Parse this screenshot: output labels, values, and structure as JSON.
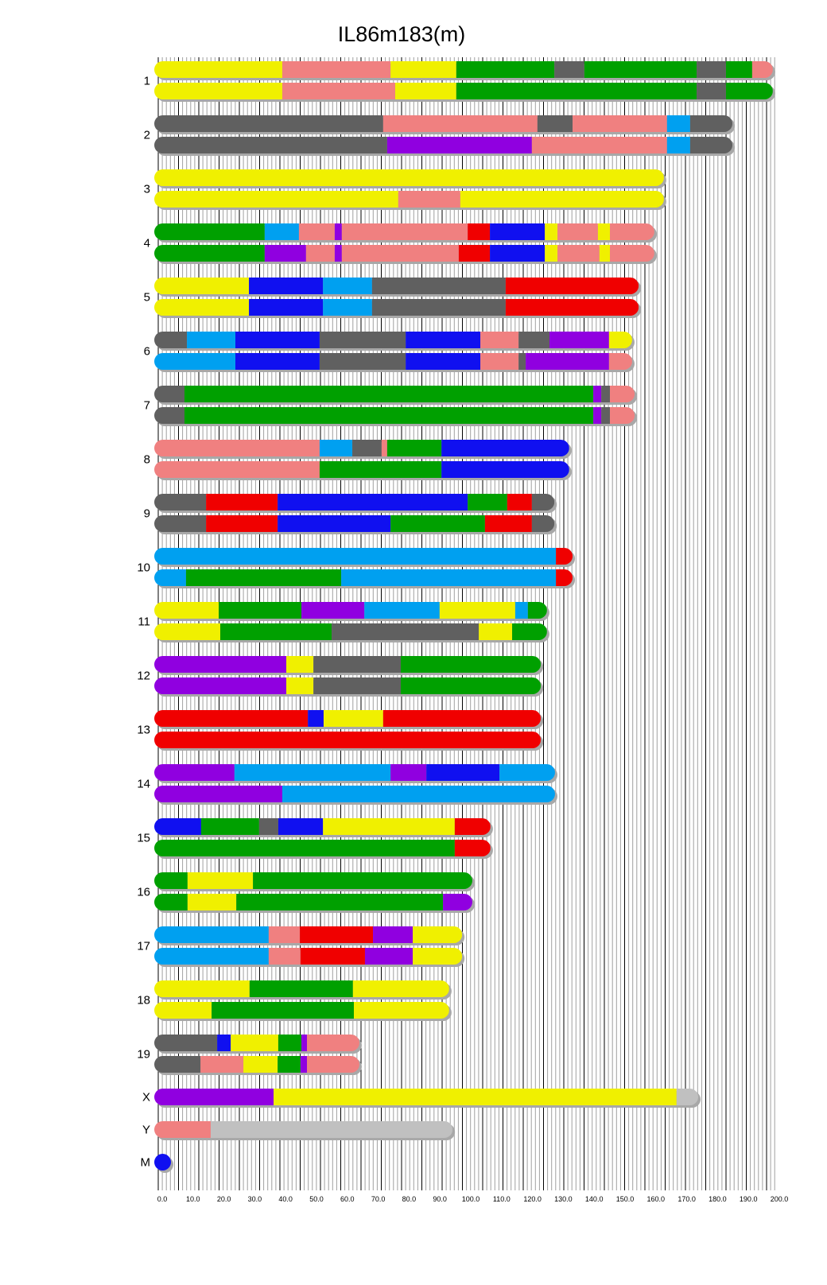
{
  "chart_data": {
    "type": "chromosome-painting",
    "title": "IL86m183(m)",
    "xlabel": "",
    "ylabel": "",
    "xlim": [
      0,
      200
    ],
    "x_ticks": [
      "0.0",
      "10.0",
      "20.0",
      "30.0",
      "40.0",
      "50.0",
      "60.0",
      "70.0",
      "80.0",
      "90.0",
      "100.0",
      "110.0",
      "120.0",
      "130.0",
      "140.0",
      "150.0",
      "160.0",
      "170.0",
      "180.0",
      "190.0",
      "200.0"
    ],
    "grid": true,
    "palette": {
      "Y": "#f0f000",
      "P": "#f08080",
      "G": "#00a000",
      "D": "#606060",
      "B": "#1010f0",
      "C": "#00a0f0",
      "R": "#f00000",
      "V": "#9000e0",
      "L": "#c0c0c0"
    },
    "chromosomes": [
      {
        "label": "1",
        "haplotypes": [
          [
            [
              "Y",
              40.2
            ],
            [
              "P",
              75.3
            ],
            [
              "Y",
              96.6
            ],
            [
              "G",
              128.4
            ],
            [
              "D",
              138.1
            ],
            [
              "G",
              174.5
            ],
            [
              "D",
              184.0
            ],
            [
              "G",
              192.5
            ],
            [
              "P",
              199.2
            ]
          ],
          [
            [
              "Y",
              40.2
            ],
            [
              "P",
              76.8
            ],
            [
              "Y",
              96.6
            ],
            [
              "G",
              174.5
            ],
            [
              "D",
              184.0
            ],
            [
              "G",
              199.2
            ]
          ]
        ]
      },
      {
        "label": "2",
        "haplotypes": [
          [
            [
              "D",
              72.9
            ],
            [
              "P",
              122.9
            ],
            [
              "D",
              134.3
            ],
            [
              "P",
              164.9
            ],
            [
              "C",
              172.4
            ],
            [
              "D",
              186.1
            ]
          ],
          [
            [
              "D",
              74.2
            ],
            [
              "V",
              121.1
            ],
            [
              "P",
              164.9
            ],
            [
              "C",
              172.4
            ],
            [
              "D",
              186.1
            ]
          ]
        ]
      },
      {
        "label": "3",
        "haplotypes": [
          [
            [
              "Y",
              163.9
            ]
          ],
          [
            [
              "Y",
              77.8
            ],
            [
              "P",
              97.9
            ],
            [
              "Y",
              163.9
            ]
          ]
        ]
      },
      {
        "label": "4",
        "haplotypes": [
          [
            [
              "G",
              34.5
            ],
            [
              "C",
              45.6
            ],
            [
              "P",
              57.2
            ],
            [
              "V",
              59.5
            ],
            [
              "P",
              100.3
            ],
            [
              "R",
              107.5
            ],
            [
              "B",
              125.3
            ],
            [
              "Y",
              129.4
            ],
            [
              "P",
              142.5
            ],
            [
              "Y",
              146.4
            ],
            [
              "P",
              160.8
            ]
          ],
          [
            [
              "G",
              34.5
            ],
            [
              "V",
              47.9
            ],
            [
              "P",
              57.2
            ],
            [
              "V",
              59.5
            ],
            [
              "P",
              97.4
            ],
            [
              "R",
              107.5
            ],
            [
              "B",
              125.3
            ],
            [
              "Y",
              129.4
            ],
            [
              "P",
              143.0
            ],
            [
              "Y",
              146.4
            ],
            [
              "P",
              160.8
            ]
          ]
        ]
      },
      {
        "label": "5",
        "haplotypes": [
          [
            [
              "Y",
              29.4
            ],
            [
              "B",
              53.4
            ],
            [
              "C",
              69.3
            ],
            [
              "D",
              112.6
            ],
            [
              "R",
              155.7
            ]
          ],
          [
            [
              "Y",
              29.4
            ],
            [
              "B",
              53.4
            ],
            [
              "C",
              69.3
            ],
            [
              "D",
              112.6
            ],
            [
              "R",
              155.7
            ]
          ]
        ]
      },
      {
        "label": "6",
        "haplotypes": [
          [
            [
              "D",
              9.3
            ],
            [
              "C",
              25.0
            ],
            [
              "B",
              52.3
            ],
            [
              "D",
              80.2
            ],
            [
              "B",
              104.4
            ],
            [
              "P",
              116.8
            ],
            [
              "D",
              126.8
            ],
            [
              "V",
              146.1
            ],
            [
              "Y",
              153.6
            ]
          ],
          [
            [
              "C",
              25.0
            ],
            [
              "B",
              52.3
            ],
            [
              "D",
              80.2
            ],
            [
              "B",
              104.4
            ],
            [
              "P",
              116.8
            ],
            [
              "D",
              119.1
            ],
            [
              "V",
              146.1
            ],
            [
              "P",
              153.6
            ]
          ]
        ]
      },
      {
        "label": "7",
        "haplotypes": [
          [
            [
              "D",
              8.5
            ],
            [
              "G",
              141.0
            ],
            [
              "V",
              143.6
            ],
            [
              "D",
              146.4
            ],
            [
              "P",
              154.4
            ]
          ],
          [
            [
              "D",
              8.5
            ],
            [
              "G",
              141.0
            ],
            [
              "V",
              143.6
            ],
            [
              "D",
              146.4
            ],
            [
              "P",
              154.4
            ]
          ]
        ]
      },
      {
        "label": "8",
        "haplotypes": [
          [
            [
              "P",
              52.3
            ],
            [
              "C",
              62.9
            ],
            [
              "D",
              72.4
            ],
            [
              "P",
              74.2
            ],
            [
              "G",
              91.8
            ],
            [
              "B",
              133.2
            ]
          ],
          [
            [
              "P",
              52.3
            ],
            [
              "G",
              91.8
            ],
            [
              "B",
              133.2
            ]
          ]
        ]
      },
      {
        "label": "9",
        "haplotypes": [
          [
            [
              "D",
              15.5
            ],
            [
              "R",
              38.7
            ],
            [
              "B",
              100.3
            ],
            [
              "G",
              113.1
            ],
            [
              "R",
              121.1
            ],
            [
              "D",
              128.4
            ]
          ],
          [
            [
              "D",
              15.5
            ],
            [
              "R",
              38.7
            ],
            [
              "B",
              75.3
            ],
            [
              "G",
              105.9
            ],
            [
              "R",
              121.1
            ],
            [
              "D",
              128.4
            ]
          ]
        ]
      },
      {
        "label": "10",
        "haplotypes": [
          [
            [
              "C",
              128.9
            ],
            [
              "R",
              134.3
            ]
          ],
          [
            [
              "C",
              9.0
            ],
            [
              "G",
              59.3
            ],
            [
              "C",
              128.9
            ],
            [
              "R",
              134.3
            ]
          ]
        ]
      },
      {
        "label": "11",
        "haplotypes": [
          [
            [
              "Y",
              19.6
            ],
            [
              "G",
              46.4
            ],
            [
              "V",
              66.8
            ],
            [
              "C",
              91.2
            ],
            [
              "Y",
              115.7
            ],
            [
              "C",
              119.8
            ],
            [
              "G",
              126.0
            ]
          ],
          [
            [
              "Y",
              20.1
            ],
            [
              "G",
              56.2
            ],
            [
              "D",
              103.9
            ],
            [
              "Y",
              114.7
            ],
            [
              "G",
              126.0
            ]
          ]
        ]
      },
      {
        "label": "12",
        "haplotypes": [
          [
            [
              "V",
              41.5
            ],
            [
              "Y",
              50.3
            ],
            [
              "D",
              78.6
            ],
            [
              "G",
              124.0
            ]
          ],
          [
            [
              "V",
              41.5
            ],
            [
              "Y",
              50.3
            ],
            [
              "D",
              78.6
            ],
            [
              "G",
              124.0
            ]
          ]
        ]
      },
      {
        "label": "13",
        "haplotypes": [
          [
            [
              "R",
              48.5
            ],
            [
              "B",
              53.6
            ],
            [
              "Y",
              72.9
            ],
            [
              "R",
              124.0
            ]
          ],
          [
            [
              "R",
              124.0
            ]
          ]
        ]
      },
      {
        "label": "14",
        "haplotypes": [
          [
            [
              "V",
              24.7
            ],
            [
              "C",
              75.3
            ],
            [
              "V",
              86.9
            ],
            [
              "B",
              110.6
            ],
            [
              "C",
              128.6
            ]
          ],
          [
            [
              "V",
              40.2
            ],
            [
              "C",
              128.6
            ]
          ]
        ]
      },
      {
        "label": "15",
        "haplotypes": [
          [
            [
              "B",
              13.9
            ],
            [
              "G",
              32.7
            ],
            [
              "D",
              38.9
            ],
            [
              "B",
              53.4
            ],
            [
              "Y",
              96.1
            ],
            [
              "R",
              107.7
            ]
          ],
          [
            [
              "G",
              96.1
            ],
            [
              "R",
              107.7
            ]
          ]
        ]
      },
      {
        "label": "16",
        "haplotypes": [
          [
            [
              "G",
              9.5
            ],
            [
              "Y",
              30.7
            ],
            [
              "G",
              101.8
            ]
          ],
          [
            [
              "G",
              9.5
            ],
            [
              "Y",
              25.3
            ],
            [
              "G",
              92.3
            ],
            [
              "V",
              101.8
            ]
          ]
        ]
      },
      {
        "label": "17",
        "haplotypes": [
          [
            [
              "C",
              35.8
            ],
            [
              "P",
              45.9
            ],
            [
              "R",
              69.6
            ],
            [
              "V",
              82.5
            ],
            [
              "Y",
              98.5
            ]
          ],
          [
            [
              "C",
              35.8
            ],
            [
              "P",
              46.1
            ],
            [
              "R",
              67.0
            ],
            [
              "V",
              82.5
            ],
            [
              "Y",
              98.5
            ]
          ]
        ]
      },
      {
        "label": "18",
        "haplotypes": [
          [
            [
              "Y",
              29.6
            ],
            [
              "G",
              63.1
            ],
            [
              "Y",
              94.3
            ]
          ],
          [
            [
              "Y",
              17.3
            ],
            [
              "G",
              63.4
            ],
            [
              "Y",
              94.3
            ]
          ]
        ]
      },
      {
        "label": "19",
        "haplotypes": [
          [
            [
              "D",
              19.1
            ],
            [
              "B",
              23.5
            ],
            [
              "Y",
              38.9
            ],
            [
              "G",
              46.4
            ],
            [
              "V",
              48.2
            ],
            [
              "P",
              65.2
            ]
          ],
          [
            [
              "D",
              13.7
            ],
            [
              "P",
              27.6
            ],
            [
              "Y",
              38.7
            ],
            [
              "G",
              46.1
            ],
            [
              "V",
              48.2
            ],
            [
              "P",
              65.2
            ]
          ]
        ]
      },
      {
        "label": "X",
        "haplotypes": [
          [
            [
              "V",
              37.4
            ],
            [
              "Y",
              168.0
            ],
            [
              "L",
              175.0
            ]
          ]
        ]
      },
      {
        "label": "Y",
        "haplotypes": [
          [
            [
              "P",
              17.0
            ],
            [
              "L",
              95.4
            ]
          ]
        ]
      },
      {
        "label": "M",
        "haplotypes": [
          [
            [
              "B",
              1.0
            ]
          ]
        ]
      }
    ]
  }
}
